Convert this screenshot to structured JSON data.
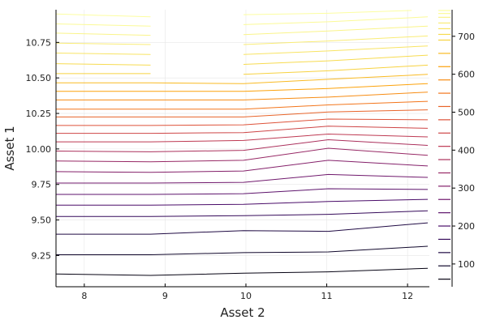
{
  "chart_data": {
    "type": "contour",
    "xlabel": "Asset 2",
    "ylabel": "Asset 1",
    "xlim": [
      7.65,
      12.27
    ],
    "ylim": [
      9.03,
      10.98
    ],
    "x_ticks": [
      {
        "value": 8,
        "label": "8"
      },
      {
        "value": 9,
        "label": "9"
      },
      {
        "value": 10,
        "label": "10"
      },
      {
        "value": 11,
        "label": "11"
      },
      {
        "value": 12,
        "label": "12"
      }
    ],
    "y_ticks": [
      {
        "value": 9.25,
        "label": "9.25"
      },
      {
        "value": 9.5,
        "label": "9.50"
      },
      {
        "value": 9.75,
        "label": "9.75"
      },
      {
        "value": 10.0,
        "label": "10.00"
      },
      {
        "value": 10.25,
        "label": "10.25"
      },
      {
        "value": 10.5,
        "label": "10.50"
      },
      {
        "value": 10.75,
        "label": "10.75"
      }
    ],
    "grid": true,
    "colormap": "inferno",
    "colorbar": {
      "range": [
        40,
        770
      ],
      "ticks": [
        {
          "value": 100,
          "label": "100"
        },
        {
          "value": 200,
          "label": "200"
        },
        {
          "value": 300,
          "label": "300"
        },
        {
          "value": 400,
          "label": "400"
        },
        {
          "value": 500,
          "label": "500"
        },
        {
          "value": 600,
          "label": "600"
        },
        {
          "value": 700,
          "label": "700"
        }
      ]
    },
    "contour_levels": [
      {
        "level": 60,
        "points": [
          [
            7.65,
            9.12
          ],
          [
            8.82,
            9.11
          ],
          [
            9.97,
            9.125
          ],
          [
            11.02,
            9.135
          ],
          [
            12.25,
            9.16
          ]
        ]
      },
      {
        "level": 95,
        "points": [
          [
            7.65,
            9.255
          ],
          [
            8.82,
            9.255
          ],
          [
            9.97,
            9.27
          ],
          [
            11.02,
            9.275
          ],
          [
            12.25,
            9.315
          ]
        ]
      },
      {
        "level": 130,
        "points": [
          [
            7.65,
            9.4
          ],
          [
            8.82,
            9.4
          ],
          [
            9.97,
            9.425
          ],
          [
            11.02,
            9.42
          ],
          [
            12.25,
            9.48
          ]
        ]
      },
      {
        "level": 165,
        "points": [
          [
            7.65,
            9.525
          ],
          [
            8.82,
            9.525
          ],
          [
            9.97,
            9.53
          ],
          [
            11.02,
            9.54
          ],
          [
            12.25,
            9.565
          ]
        ]
      },
      {
        "level": 200,
        "points": [
          [
            7.65,
            9.605
          ],
          [
            8.82,
            9.605
          ],
          [
            9.97,
            9.61
          ],
          [
            11.02,
            9.63
          ],
          [
            12.25,
            9.645
          ]
        ]
      },
      {
        "level": 235,
        "points": [
          [
            7.65,
            9.68
          ],
          [
            8.82,
            9.68
          ],
          [
            9.97,
            9.685
          ],
          [
            11.02,
            9.72
          ],
          [
            12.25,
            9.715
          ]
        ]
      },
      {
        "level": 270,
        "points": [
          [
            7.65,
            9.76
          ],
          [
            8.82,
            9.76
          ],
          [
            9.97,
            9.765
          ],
          [
            11.02,
            9.82
          ],
          [
            12.25,
            9.8
          ]
        ]
      },
      {
        "level": 305,
        "points": [
          [
            7.65,
            9.84
          ],
          [
            8.82,
            9.835
          ],
          [
            9.97,
            9.845
          ],
          [
            11.02,
            9.92
          ],
          [
            12.25,
            9.88
          ]
        ]
      },
      {
        "level": 340,
        "points": [
          [
            7.65,
            9.915
          ],
          [
            8.82,
            9.91
          ],
          [
            9.97,
            9.92
          ],
          [
            11.02,
            10.005
          ],
          [
            12.25,
            9.955
          ]
        ]
      },
      {
        "level": 375,
        "points": [
          [
            7.65,
            9.985
          ],
          [
            8.82,
            9.98
          ],
          [
            9.97,
            9.99
          ],
          [
            11.02,
            10.065
          ],
          [
            12.25,
            10.025
          ]
        ]
      },
      {
        "level": 410,
        "points": [
          [
            7.65,
            10.05
          ],
          [
            8.82,
            10.05
          ],
          [
            9.97,
            10.06
          ],
          [
            11.02,
            10.105
          ],
          [
            12.25,
            10.085
          ]
        ]
      },
      {
        "level": 445,
        "points": [
          [
            7.65,
            10.11
          ],
          [
            8.82,
            10.11
          ],
          [
            9.97,
            10.115
          ],
          [
            11.02,
            10.16
          ],
          [
            12.25,
            10.145
          ]
        ]
      },
      {
        "level": 480,
        "points": [
          [
            7.65,
            10.165
          ],
          [
            8.82,
            10.165
          ],
          [
            9.97,
            10.17
          ],
          [
            11.02,
            10.21
          ],
          [
            12.25,
            10.205
          ]
        ]
      },
      {
        "level": 515,
        "points": [
          [
            7.65,
            10.225
          ],
          [
            8.82,
            10.225
          ],
          [
            9.97,
            10.225
          ],
          [
            11.02,
            10.26
          ],
          [
            12.25,
            10.275
          ]
        ]
      },
      {
        "level": 550,
        "points": [
          [
            7.65,
            10.28
          ],
          [
            8.82,
            10.28
          ],
          [
            9.97,
            10.28
          ],
          [
            11.02,
            10.31
          ],
          [
            12.25,
            10.335
          ]
        ]
      },
      {
        "level": 585,
        "points": [
          [
            7.65,
            10.345
          ],
          [
            8.82,
            10.345
          ],
          [
            9.97,
            10.345
          ],
          [
            11.02,
            10.365
          ],
          [
            12.25,
            10.4
          ]
        ]
      },
      {
        "level": 620,
        "points": [
          [
            7.65,
            10.405
          ],
          [
            8.82,
            10.405
          ],
          [
            9.97,
            10.405
          ],
          [
            11.02,
            10.425
          ],
          [
            12.25,
            10.46
          ]
        ]
      },
      {
        "level": 655,
        "points": [
          [
            7.65,
            10.465
          ],
          [
            8.82,
            10.465
          ],
          [
            9.97,
            10.46
          ],
          [
            11.02,
            10.49
          ],
          [
            12.25,
            10.525
          ]
        ]
      },
      {
        "level": 690,
        "points": [
          [
            7.65,
            10.53
          ],
          [
            8.82,
            10.53
          ]
        ]
      },
      {
        "level": 690,
        "points": [
          [
            9.97,
            10.525
          ],
          [
            11.02,
            10.55
          ],
          [
            12.25,
            10.59
          ]
        ]
      },
      {
        "level": 705,
        "points": [
          [
            7.65,
            10.6
          ],
          [
            8.82,
            10.59
          ]
        ]
      },
      {
        "level": 705,
        "points": [
          [
            9.97,
            10.595
          ],
          [
            11.02,
            10.62
          ],
          [
            12.25,
            10.66
          ]
        ]
      },
      {
        "level": 720,
        "points": [
          [
            7.65,
            10.675
          ],
          [
            8.82,
            10.665
          ]
        ]
      },
      {
        "level": 720,
        "points": [
          [
            9.97,
            10.665
          ],
          [
            11.02,
            10.69
          ],
          [
            12.25,
            10.725
          ]
        ]
      },
      {
        "level": 735,
        "points": [
          [
            7.65,
            10.745
          ],
          [
            8.82,
            10.735
          ]
        ]
      },
      {
        "level": 735,
        "points": [
          [
            9.97,
            10.735
          ],
          [
            11.02,
            10.76
          ],
          [
            12.25,
            10.795
          ]
        ]
      },
      {
        "level": 750,
        "points": [
          [
            7.65,
            10.815
          ],
          [
            8.82,
            10.8
          ]
        ]
      },
      {
        "level": 750,
        "points": [
          [
            9.97,
            10.805
          ],
          [
            11.02,
            10.83
          ],
          [
            12.25,
            10.865
          ]
        ]
      },
      {
        "level": 760,
        "points": [
          [
            7.65,
            10.88
          ],
          [
            8.82,
            10.865
          ]
        ]
      },
      {
        "level": 760,
        "points": [
          [
            9.97,
            10.875
          ],
          [
            11.02,
            10.895
          ],
          [
            12.25,
            10.93
          ]
        ]
      },
      {
        "level": 768,
        "points": [
          [
            7.65,
            10.95
          ],
          [
            8.82,
            10.93
          ]
        ]
      },
      {
        "level": 768,
        "points": [
          [
            9.97,
            10.945
          ],
          [
            11.02,
            10.955
          ],
          [
            12.05,
            10.975
          ]
        ]
      }
    ],
    "colorbar_levels": [
      60,
      95,
      130,
      165,
      200,
      235,
      270,
      305,
      340,
      375,
      410,
      445,
      480,
      515,
      550,
      585,
      620,
      655,
      690,
      705,
      720,
      735,
      750,
      760,
      768
    ]
  }
}
